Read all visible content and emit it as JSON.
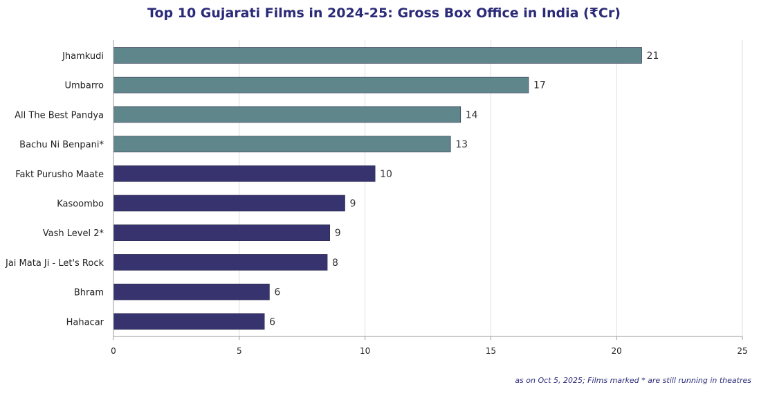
{
  "chart_data": {
    "type": "bar",
    "orientation": "horizontal",
    "title": "Top 10 Gujarati Films in 2024-25: Gross Box Office in India (₹Cr)",
    "categories": [
      "Jhamkudi",
      "Umbarro",
      "All The Best Pandya",
      "Bachu Ni Benpani*",
      "Fakt Purusho Maate",
      "Kasoombo",
      "Vash Level 2*",
      "Jai Mata Ji - Let's Rock",
      "Bhram",
      "Hahacar"
    ],
    "values": [
      21,
      16.5,
      13.8,
      13.4,
      10.4,
      9.2,
      8.6,
      8.5,
      6.2,
      6
    ],
    "value_labels": [
      "21",
      "17",
      "14",
      "13",
      "10",
      "9",
      "9",
      "8",
      "6",
      "6"
    ],
    "bar_colors": [
      "#5f868b",
      "#5f868b",
      "#5f868b",
      "#5f868b",
      "#37336f",
      "#37336f",
      "#37336f",
      "#37336f",
      "#37336f",
      "#37336f"
    ],
    "xlim": [
      0,
      25
    ],
    "xticks": [
      0,
      5,
      10,
      15,
      20,
      25
    ],
    "xlabel": "",
    "ylabel": "",
    "grid": true,
    "note": "as on Oct 5, 2025; Films marked * are still running in theatres"
  }
}
